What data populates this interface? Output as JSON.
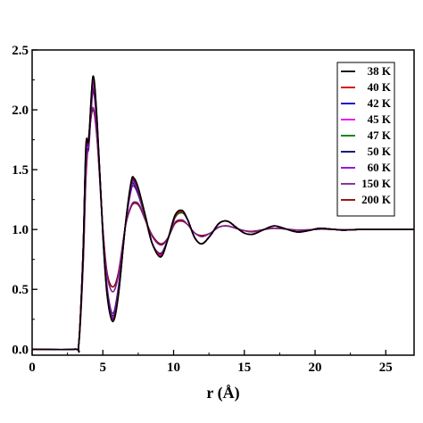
{
  "chart_data": {
    "type": "line",
    "title": "",
    "xlabel": "r (Å)",
    "ylabel": "",
    "xlim": [
      0,
      27
    ],
    "ylim": [
      -0.05,
      2.5
    ],
    "x_ticks": [
      0,
      5,
      10,
      15,
      20,
      25
    ],
    "x_tick_labels": [
      "0",
      "5",
      "10",
      "15",
      "20",
      "25"
    ],
    "y_ticks": [
      0.0,
      0.5,
      1.0,
      1.5,
      2.0,
      2.5
    ],
    "y_tick_labels": [
      "0.0",
      "0.5",
      "1.0",
      "1.5",
      "2.0",
      "2.5"
    ],
    "grid": false,
    "legend_position": "top-right",
    "series": [
      {
        "name": "38 K",
        "color": "#000000",
        "x": [
          0,
          3.0,
          3.3,
          3.6,
          3.8,
          4.0,
          4.3,
          4.6,
          5.0,
          5.3,
          5.7,
          6.1,
          6.6,
          7.0,
          7.2,
          7.5,
          8.0,
          8.5,
          9.1,
          9.6,
          10.1,
          10.6,
          11.0,
          11.5,
          12.0,
          12.6,
          13.2,
          13.8,
          14.4,
          15.0,
          15.6,
          16.4,
          17.1,
          17.8,
          18.7,
          19.5,
          20.3,
          21.0,
          22.0,
          23.0,
          24.0,
          25.0,
          26.0,
          27.0
        ],
        "y": [
          0,
          0,
          0.05,
          0.8,
          1.7,
          1.75,
          2.28,
          1.9,
          0.95,
          0.45,
          0.23,
          0.45,
          1.05,
          1.4,
          1.43,
          1.35,
          1.12,
          0.88,
          0.77,
          0.92,
          1.12,
          1.16,
          1.08,
          0.93,
          0.88,
          0.95,
          1.05,
          1.07,
          1.02,
          0.97,
          0.96,
          1.0,
          1.03,
          1.01,
          0.98,
          0.99,
          1.01,
          1.005,
          0.995,
          1.0,
          1.0,
          1.0,
          1.0,
          1.0
        ]
      },
      {
        "name": "40 K",
        "color": "#d40000",
        "x": [
          0,
          3.0,
          3.3,
          3.6,
          3.8,
          4.0,
          4.3,
          4.6,
          5.0,
          5.3,
          5.7,
          6.1,
          6.6,
          7.0,
          7.2,
          7.5,
          8.0,
          8.5,
          9.1,
          9.6,
          10.1,
          10.6,
          11.0,
          11.5,
          12.0,
          12.6,
          13.2,
          13.8,
          14.4,
          15.0,
          15.6,
          16.4,
          17.1,
          17.8,
          18.7,
          19.5,
          20.3,
          21.0,
          22.0,
          23.0,
          24.0,
          25.0,
          26.0,
          27.0
        ],
        "y": [
          0,
          0,
          0.05,
          0.8,
          1.68,
          1.74,
          2.26,
          1.88,
          0.96,
          0.46,
          0.24,
          0.46,
          1.04,
          1.39,
          1.42,
          1.34,
          1.11,
          0.88,
          0.78,
          0.92,
          1.11,
          1.15,
          1.08,
          0.93,
          0.88,
          0.95,
          1.05,
          1.07,
          1.02,
          0.97,
          0.96,
          1.0,
          1.03,
          1.01,
          0.98,
          0.99,
          1.01,
          1.005,
          0.995,
          1.0,
          1.0,
          1.0,
          1.0,
          1.0
        ]
      },
      {
        "name": "42 K",
        "color": "#0000cc",
        "x": [
          0,
          3.0,
          3.3,
          3.6,
          3.8,
          4.0,
          4.3,
          4.6,
          5.0,
          5.3,
          5.7,
          6.1,
          6.6,
          7.0,
          7.2,
          7.5,
          8.0,
          8.5,
          9.1,
          9.6,
          10.1,
          10.6,
          11.0,
          11.5,
          12.0,
          12.6,
          13.2,
          13.8,
          14.4,
          15.0,
          15.6,
          16.4,
          17.1,
          17.8,
          18.7,
          19.5,
          20.3,
          21.0,
          22.0,
          23.0,
          24.0,
          25.0,
          26.0,
          27.0
        ],
        "y": [
          0,
          0,
          0.05,
          0.8,
          1.66,
          1.73,
          2.25,
          1.88,
          0.97,
          0.47,
          0.25,
          0.47,
          1.04,
          1.38,
          1.41,
          1.33,
          1.11,
          0.88,
          0.78,
          0.92,
          1.11,
          1.15,
          1.08,
          0.93,
          0.88,
          0.95,
          1.05,
          1.07,
          1.02,
          0.97,
          0.96,
          1.0,
          1.03,
          1.01,
          0.98,
          0.99,
          1.01,
          1.005,
          0.995,
          1.0,
          1.0,
          1.0,
          1.0,
          1.0
        ]
      },
      {
        "name": "45 K",
        "color": "#ee00ee",
        "x": [
          0,
          3.0,
          3.3,
          3.6,
          3.8,
          4.0,
          4.3,
          4.6,
          5.0,
          5.3,
          5.7,
          6.1,
          6.6,
          7.0,
          7.2,
          7.5,
          8.0,
          8.5,
          9.1,
          9.6,
          10.1,
          10.6,
          11.0,
          11.5,
          12.0,
          12.6,
          13.2,
          13.8,
          14.4,
          15.0,
          15.6,
          16.4,
          17.1,
          17.8,
          18.7,
          19.5,
          20.3,
          21.0,
          22.0,
          23.0,
          24.0,
          25.0,
          26.0,
          27.0
        ],
        "y": [
          0,
          0,
          0.05,
          0.8,
          1.64,
          1.72,
          2.22,
          1.86,
          0.98,
          0.48,
          0.26,
          0.48,
          1.04,
          1.37,
          1.4,
          1.32,
          1.11,
          0.88,
          0.79,
          0.92,
          1.11,
          1.15,
          1.08,
          0.93,
          0.88,
          0.95,
          1.05,
          1.07,
          1.02,
          0.97,
          0.96,
          1.0,
          1.03,
          1.01,
          0.98,
          0.99,
          1.01,
          1.005,
          0.995,
          1.0,
          1.0,
          1.0,
          1.0,
          1.0
        ]
      },
      {
        "name": "47 K",
        "color": "#007a00",
        "x": [
          0,
          3.0,
          3.3,
          3.6,
          3.8,
          4.0,
          4.3,
          4.6,
          5.0,
          5.3,
          5.7,
          6.1,
          6.6,
          7.0,
          7.2,
          7.5,
          8.0,
          8.5,
          9.1,
          9.6,
          10.1,
          10.6,
          11.0,
          11.5,
          12.0,
          12.6,
          13.2,
          13.8,
          14.4,
          15.0,
          15.6,
          16.4,
          17.1,
          17.8,
          18.7,
          19.5,
          20.3,
          21.0,
          22.0,
          23.0,
          24.0,
          25.0,
          26.0,
          27.0
        ],
        "y": [
          0,
          0,
          0.05,
          0.8,
          1.63,
          1.71,
          2.2,
          1.85,
          0.98,
          0.49,
          0.27,
          0.49,
          1.04,
          1.36,
          1.39,
          1.31,
          1.1,
          0.88,
          0.79,
          0.92,
          1.1,
          1.14,
          1.08,
          0.93,
          0.88,
          0.95,
          1.05,
          1.07,
          1.02,
          0.97,
          0.96,
          1.0,
          1.03,
          1.01,
          0.98,
          0.99,
          1.01,
          1.005,
          0.995,
          1.0,
          1.0,
          1.0,
          1.0,
          1.0
        ]
      },
      {
        "name": "50 K",
        "color": "#000066",
        "x": [
          0,
          3.0,
          3.3,
          3.6,
          3.8,
          4.0,
          4.3,
          4.6,
          5.0,
          5.3,
          5.7,
          6.1,
          6.6,
          7.0,
          7.2,
          7.5,
          8.0,
          8.5,
          9.1,
          9.6,
          10.1,
          10.6,
          11.0,
          11.5,
          12.0,
          12.6,
          13.2,
          13.8,
          14.4,
          15.0,
          15.6,
          16.4,
          17.1,
          17.8,
          18.7,
          19.5,
          20.3,
          21.0,
          22.0,
          23.0,
          24.0,
          25.0,
          26.0,
          27.0
        ],
        "y": [
          0,
          0,
          0.05,
          0.8,
          1.62,
          1.7,
          2.18,
          1.84,
          0.99,
          0.5,
          0.28,
          0.5,
          1.04,
          1.35,
          1.38,
          1.3,
          1.1,
          0.88,
          0.8,
          0.92,
          1.1,
          1.14,
          1.08,
          0.93,
          0.88,
          0.95,
          1.05,
          1.07,
          1.02,
          0.97,
          0.96,
          1.0,
          1.03,
          1.01,
          0.98,
          0.99,
          1.01,
          1.005,
          0.995,
          1.0,
          1.0,
          1.0,
          1.0,
          1.0
        ]
      },
      {
        "name": "60 K",
        "color": "#8a00d4",
        "x": [
          0,
          3.0,
          3.3,
          3.6,
          3.8,
          4.0,
          4.3,
          4.6,
          5.0,
          5.3,
          5.7,
          6.1,
          6.6,
          7.0,
          7.2,
          7.5,
          8.0,
          8.5,
          9.1,
          9.6,
          10.1,
          10.6,
          11.0,
          11.5,
          12.0,
          12.6,
          13.2,
          13.8,
          14.4,
          15.0,
          15.6,
          16.4,
          17.1,
          17.8,
          18.7,
          19.5,
          20.3,
          21.0,
          22.0,
          23.0,
          24.0,
          25.0,
          26.0,
          27.0
        ],
        "y": [
          0,
          0,
          0.05,
          0.8,
          1.6,
          1.68,
          2.15,
          1.82,
          1.0,
          0.52,
          0.3,
          0.52,
          1.04,
          1.33,
          1.36,
          1.29,
          1.1,
          0.88,
          0.8,
          0.92,
          1.1,
          1.14,
          1.08,
          0.93,
          0.88,
          0.95,
          1.05,
          1.07,
          1.02,
          0.97,
          0.96,
          1.0,
          1.03,
          1.01,
          0.98,
          0.99,
          1.01,
          1.005,
          0.995,
          1.0,
          1.0,
          1.0,
          1.0,
          1.0
        ]
      },
      {
        "name": "150 K",
        "color": "#7a1f8c",
        "x": [
          0,
          3.0,
          3.3,
          3.6,
          3.8,
          4.0,
          4.3,
          4.6,
          5.0,
          5.3,
          5.7,
          6.1,
          6.6,
          7.0,
          7.3,
          7.6,
          8.0,
          8.5,
          9.1,
          9.6,
          10.1,
          10.6,
          11.0,
          11.5,
          12.0,
          12.6,
          13.2,
          13.8,
          14.4,
          15.0,
          15.6,
          16.4,
          17.1,
          17.8,
          18.7,
          19.5,
          20.3,
          21.0,
          22.0,
          23.0,
          24.0,
          25.0,
          26.0,
          27.0
        ],
        "y": [
          0,
          0,
          0.04,
          0.7,
          1.45,
          1.78,
          2.02,
          1.75,
          1.0,
          0.62,
          0.48,
          0.62,
          1.03,
          1.2,
          1.23,
          1.2,
          1.08,
          0.94,
          0.87,
          0.93,
          1.06,
          1.08,
          1.04,
          0.97,
          0.94,
          0.97,
          1.02,
          1.03,
          1.01,
          0.99,
          0.98,
          1.0,
          1.01,
          1.005,
          0.995,
          0.997,
          1.003,
          1.002,
          0.998,
          1.0,
          1.0,
          1.0,
          1.0,
          1.0
        ]
      },
      {
        "name": "200 K",
        "color": "#8b0000",
        "x": [
          0,
          3.0,
          3.3,
          3.6,
          3.8,
          4.0,
          4.3,
          4.6,
          5.0,
          5.3,
          5.7,
          6.1,
          6.6,
          7.0,
          7.3,
          7.6,
          8.0,
          8.5,
          9.1,
          9.6,
          10.1,
          10.6,
          11.0,
          11.5,
          12.0,
          12.6,
          13.2,
          13.8,
          14.4,
          15.0,
          15.6,
          16.4,
          17.1,
          17.8,
          18.7,
          19.5,
          20.3,
          21.0,
          22.0,
          23.0,
          24.0,
          25.0,
          26.0,
          27.0
        ],
        "y": [
          0,
          0,
          0.04,
          0.68,
          1.42,
          1.76,
          2.0,
          1.74,
          1.01,
          0.64,
          0.52,
          0.64,
          1.03,
          1.19,
          1.22,
          1.19,
          1.08,
          0.95,
          0.88,
          0.93,
          1.05,
          1.07,
          1.04,
          0.97,
          0.95,
          0.97,
          1.02,
          1.03,
          1.01,
          0.99,
          0.985,
          1.0,
          1.01,
          1.005,
          0.995,
          0.997,
          1.003,
          1.002,
          0.998,
          1.0,
          1.0,
          1.0,
          1.0,
          1.0
        ]
      }
    ]
  }
}
